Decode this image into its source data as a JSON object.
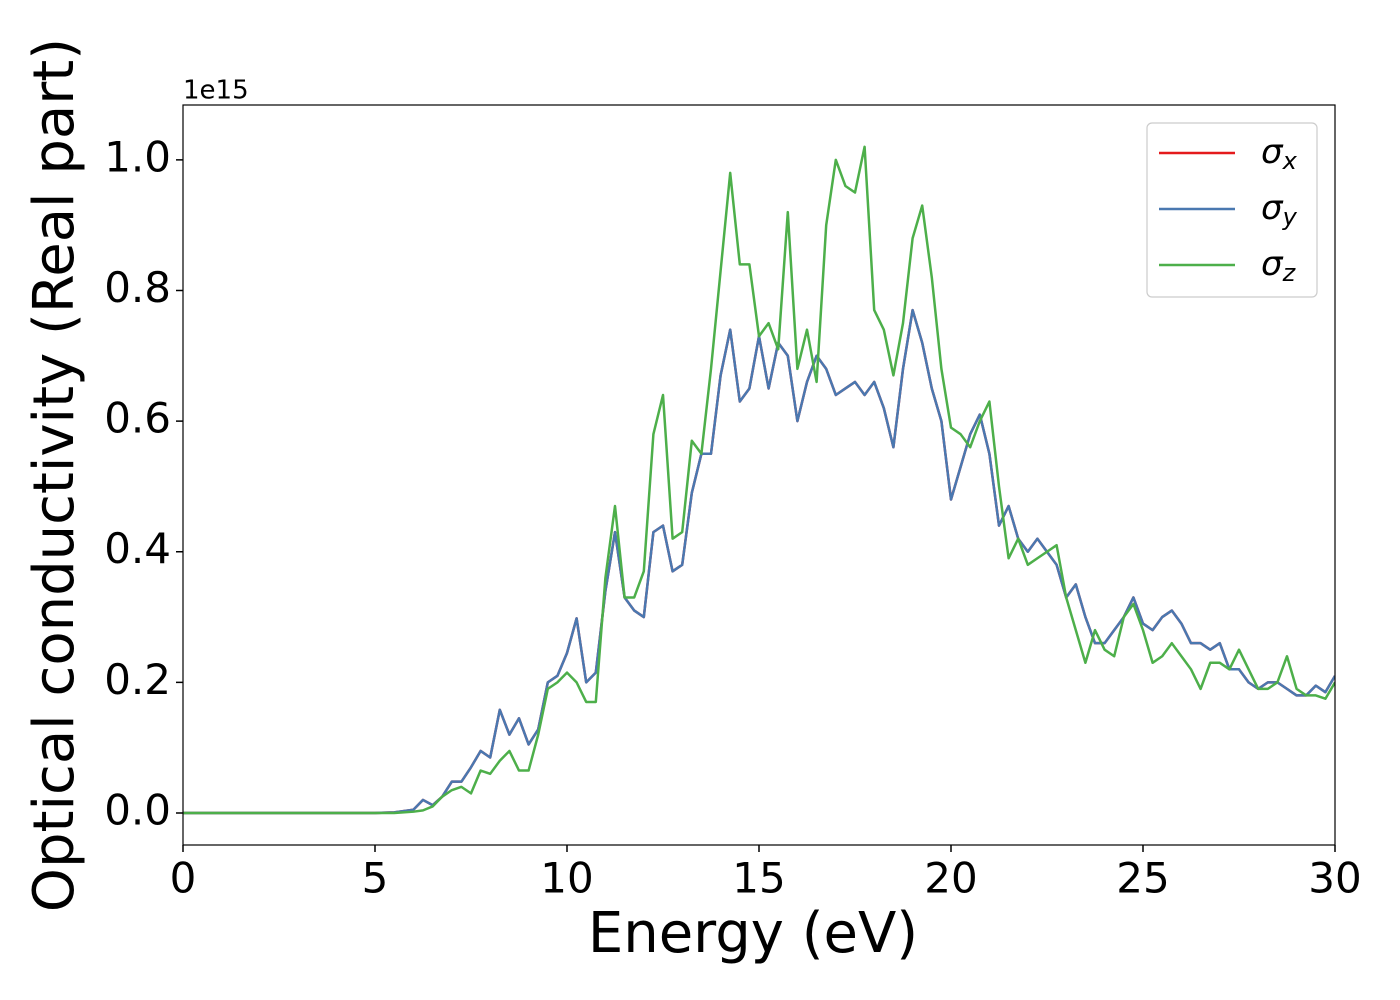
{
  "chart_data": {
    "type": "line",
    "x_label": "Energy (eV)",
    "y_label": "Optical conductivity (Real part)",
    "y_offset_label": "1e15",
    "xlim": [
      0,
      30
    ],
    "xticks": [
      0,
      5,
      10,
      15,
      20,
      25,
      30
    ],
    "ylim": [
      -0.049,
      1.084
    ],
    "yticks": [
      {
        "value": 0,
        "label": "0.0"
      },
      0.2,
      0.4,
      0.6,
      0.8,
      {
        "value": 1,
        "label": "1.0"
      }
    ],
    "legend": "upper right",
    "x": [
      0,
      1,
      2,
      3,
      4,
      5,
      5.5,
      6,
      6.25,
      6.5,
      6.75,
      7,
      7.25,
      7.5,
      7.75,
      8,
      8.25,
      8.5,
      8.75,
      9,
      9.25,
      9.5,
      9.75,
      10,
      10.25,
      10.5,
      10.75,
      11,
      11.25,
      11.5,
      11.75,
      12,
      12.25,
      12.5,
      12.75,
      13,
      13.25,
      13.5,
      13.75,
      14,
      14.25,
      14.5,
      14.75,
      15,
      15.25,
      15.5,
      15.75,
      16,
      16.25,
      16.5,
      16.75,
      17,
      17.25,
      17.5,
      17.75,
      18,
      18.25,
      18.5,
      18.75,
      19,
      19.25,
      19.5,
      19.75,
      20,
      20.25,
      20.5,
      20.75,
      21,
      21.25,
      21.5,
      21.75,
      22,
      22.25,
      22.5,
      22.75,
      23,
      23.25,
      23.5,
      23.75,
      24,
      24.25,
      24.5,
      24.75,
      25,
      25.25,
      25.5,
      25.75,
      26,
      26.25,
      26.5,
      26.75,
      27,
      27.25,
      27.5,
      27.75,
      28,
      28.25,
      28.5,
      28.75,
      29,
      29.25,
      29.5,
      29.75,
      30
    ],
    "series": [
      {
        "name": "σx",
        "color": "#e41a1c",
        "values": [
          0,
          0,
          0,
          0,
          0,
          0,
          0.001,
          0.005,
          0.02,
          0.012,
          0.025,
          0.048,
          0.048,
          0.07,
          0.095,
          0.085,
          0.158,
          0.12,
          0.145,
          0.105,
          0.128,
          0.2,
          0.21,
          0.245,
          0.298,
          0.2,
          0.215,
          0.34,
          0.43,
          0.33,
          0.31,
          0.3,
          0.43,
          0.44,
          0.37,
          0.38,
          0.49,
          0.55,
          0.55,
          0.67,
          0.74,
          0.63,
          0.65,
          0.73,
          0.65,
          0.72,
          0.7,
          0.6,
          0.66,
          0.7,
          0.68,
          0.64,
          0.65,
          0.66,
          0.64,
          0.66,
          0.62,
          0.56,
          0.68,
          0.77,
          0.72,
          0.65,
          0.6,
          0.48,
          0.53,
          0.58,
          0.61,
          0.55,
          0.44,
          0.47,
          0.42,
          0.4,
          0.42,
          0.4,
          0.38,
          0.33,
          0.35,
          0.3,
          0.26,
          0.26,
          0.28,
          0.3,
          0.33,
          0.29,
          0.28,
          0.3,
          0.31,
          0.29,
          0.26,
          0.26,
          0.25,
          0.26,
          0.22,
          0.22,
          0.2,
          0.19,
          0.2,
          0.2,
          0.19,
          0.18,
          0.18,
          0.195,
          0.185,
          0.21
        ]
      },
      {
        "name": "σy",
        "color": "#4a78b0",
        "values": [
          0,
          0,
          0,
          0,
          0,
          0,
          0.001,
          0.005,
          0.02,
          0.012,
          0.025,
          0.048,
          0.048,
          0.07,
          0.095,
          0.085,
          0.158,
          0.12,
          0.145,
          0.105,
          0.128,
          0.2,
          0.21,
          0.245,
          0.298,
          0.2,
          0.215,
          0.34,
          0.43,
          0.33,
          0.31,
          0.3,
          0.43,
          0.44,
          0.37,
          0.38,
          0.49,
          0.55,
          0.55,
          0.67,
          0.74,
          0.63,
          0.65,
          0.73,
          0.65,
          0.72,
          0.7,
          0.6,
          0.66,
          0.7,
          0.68,
          0.64,
          0.65,
          0.66,
          0.64,
          0.66,
          0.62,
          0.56,
          0.68,
          0.77,
          0.72,
          0.65,
          0.6,
          0.48,
          0.53,
          0.58,
          0.61,
          0.55,
          0.44,
          0.47,
          0.42,
          0.4,
          0.42,
          0.4,
          0.38,
          0.33,
          0.35,
          0.3,
          0.26,
          0.26,
          0.28,
          0.3,
          0.33,
          0.29,
          0.28,
          0.3,
          0.31,
          0.29,
          0.26,
          0.26,
          0.25,
          0.26,
          0.22,
          0.22,
          0.2,
          0.19,
          0.2,
          0.2,
          0.19,
          0.18,
          0.18,
          0.195,
          0.185,
          0.21
        ]
      },
      {
        "name": "σz",
        "color": "#4daf4a",
        "values": [
          0,
          0,
          0,
          0,
          0,
          0,
          0,
          0.002,
          0.004,
          0.01,
          0.025,
          0.035,
          0.04,
          0.03,
          0.065,
          0.06,
          0.08,
          0.095,
          0.065,
          0.065,
          0.12,
          0.19,
          0.2,
          0.215,
          0.2,
          0.17,
          0.17,
          0.36,
          0.47,
          0.33,
          0.33,
          0.37,
          0.58,
          0.64,
          0.42,
          0.43,
          0.57,
          0.55,
          0.68,
          0.83,
          0.98,
          0.84,
          0.84,
          0.73,
          0.75,
          0.71,
          0.92,
          0.68,
          0.74,
          0.66,
          0.9,
          1.0,
          0.96,
          0.95,
          1.02,
          0.77,
          0.74,
          0.67,
          0.75,
          0.88,
          0.93,
          0.82,
          0.68,
          0.59,
          0.58,
          0.56,
          0.6,
          0.63,
          0.5,
          0.39,
          0.42,
          0.38,
          0.39,
          0.4,
          0.41,
          0.33,
          0.28,
          0.23,
          0.28,
          0.25,
          0.24,
          0.3,
          0.32,
          0.28,
          0.23,
          0.24,
          0.26,
          0.24,
          0.22,
          0.19,
          0.23,
          0.23,
          0.22,
          0.25,
          0.22,
          0.19,
          0.19,
          0.2,
          0.24,
          0.19,
          0.18,
          0.18,
          0.175,
          0.2
        ]
      }
    ]
  }
}
